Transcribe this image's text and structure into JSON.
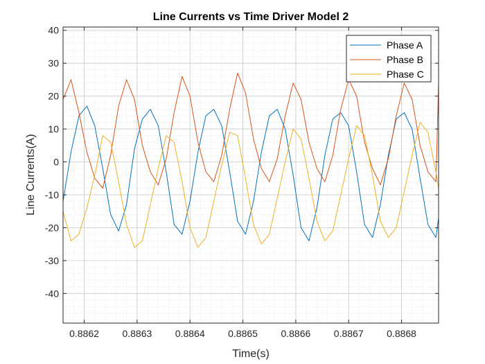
{
  "chart_data": {
    "type": "line",
    "title": "Line Currents vs Time Driver Model 2",
    "xlabel": "Time(s)",
    "ylabel": "Line Currents(A)",
    "xlim": [
      0.88616,
      0.88687
    ],
    "ylim": [
      -49,
      41
    ],
    "xticks": [
      0.8862,
      0.8863,
      0.8864,
      0.8865,
      0.8866,
      0.8867,
      0.8868
    ],
    "xtick_labels": [
      "0.8862",
      "0.8863",
      "0.8864",
      "0.8865",
      "0.8866",
      "0.8867",
      "0.8868"
    ],
    "yticks": [
      40,
      30,
      20,
      10,
      0,
      -10,
      -20,
      -30,
      -40
    ],
    "ytick_labels": [
      "40",
      "30",
      "20",
      "10",
      "0",
      "-10",
      "-20",
      "-30",
      "-40"
    ],
    "grid": true,
    "minor_grid": true,
    "legend_position": "top-right",
    "series": [
      {
        "name": "Phase A",
        "color": "#0072BD",
        "x": [
          0.88616,
          0.886175,
          0.88619,
          0.886205,
          0.88622,
          0.886235,
          0.88625,
          0.886265,
          0.88628,
          0.886295,
          0.88631,
          0.886325,
          0.88634,
          0.886355,
          0.88637,
          0.886385,
          0.8864,
          0.886415,
          0.88643,
          0.886445,
          0.88646,
          0.886475,
          0.88649,
          0.886505,
          0.88652,
          0.886535,
          0.88655,
          0.886565,
          0.88658,
          0.886595,
          0.88661,
          0.886625,
          0.88664,
          0.886655,
          0.88667,
          0.886685,
          0.8867,
          0.886715,
          0.88673,
          0.886745,
          0.88676,
          0.886775,
          0.88679,
          0.886805,
          0.88682,
          0.886835,
          0.88685,
          0.886865,
          0.88687
        ],
        "y": [
          -12,
          3,
          14,
          17,
          11,
          -2,
          -16,
          -21,
          -13,
          4,
          13,
          16,
          11,
          -3,
          -19,
          -22,
          -12,
          3,
          14,
          16,
          11,
          -3,
          -18,
          -22,
          -12,
          3,
          14,
          16,
          10,
          -4,
          -20,
          -24,
          -14,
          2,
          13,
          15,
          11,
          -3,
          -19,
          -23,
          -13,
          2,
          13,
          15,
          10,
          -5,
          -19,
          -23,
          -17
        ]
      },
      {
        "name": "Phase B",
        "color": "#D95319",
        "x": [
          0.88616,
          0.886175,
          0.88619,
          0.886205,
          0.88622,
          0.886235,
          0.88625,
          0.886265,
          0.88628,
          0.886295,
          0.88631,
          0.886325,
          0.88634,
          0.886355,
          0.88637,
          0.886385,
          0.8864,
          0.886415,
          0.88643,
          0.886445,
          0.88646,
          0.886475,
          0.88649,
          0.886505,
          0.88652,
          0.886535,
          0.88655,
          0.886565,
          0.88658,
          0.886595,
          0.88661,
          0.886625,
          0.88664,
          0.886655,
          0.88667,
          0.886685,
          0.8867,
          0.886715,
          0.88673,
          0.886745,
          0.88676,
          0.886775,
          0.88679,
          0.886805,
          0.88682,
          0.886835,
          0.88685,
          0.886865,
          0.88687
        ],
        "y": [
          19,
          25,
          15,
          3,
          -5,
          -8,
          2,
          17,
          25,
          19,
          5,
          -3,
          -7,
          1,
          15,
          26,
          20,
          6,
          -3,
          -6,
          2,
          16,
          27,
          21,
          7,
          -2,
          -6,
          1,
          14,
          24,
          19,
          6,
          -2,
          -6,
          2,
          16,
          25,
          20,
          6,
          -2,
          -7,
          1,
          14,
          24,
          19,
          5,
          -3,
          -6,
          24
        ]
      },
      {
        "name": "Phase C",
        "color": "#EDB120",
        "x": [
          0.88616,
          0.886175,
          0.88619,
          0.886205,
          0.88622,
          0.886235,
          0.88625,
          0.886265,
          0.88628,
          0.886295,
          0.88631,
          0.886325,
          0.88634,
          0.886355,
          0.88637,
          0.886385,
          0.8864,
          0.886415,
          0.88643,
          0.886445,
          0.88646,
          0.886475,
          0.88649,
          0.886505,
          0.88652,
          0.886535,
          0.88655,
          0.886565,
          0.88658,
          0.886595,
          0.88661,
          0.886625,
          0.88664,
          0.886655,
          0.88667,
          0.886685,
          0.8867,
          0.886715,
          0.88673,
          0.886745,
          0.88676,
          0.886775,
          0.88679,
          0.886805,
          0.88682,
          0.886835,
          0.88685,
          0.886865,
          0.88687
        ],
        "y": [
          -15,
          -24,
          -22,
          -14,
          -4,
          8,
          6,
          -6,
          -19,
          -26,
          -24,
          -13,
          -2,
          8,
          6,
          -6,
          -20,
          -26,
          -23,
          -12,
          -1,
          9,
          8,
          -5,
          -19,
          -25,
          -22,
          -11,
          0,
          10,
          7,
          -5,
          -18,
          -24,
          -21,
          -10,
          1,
          11,
          8,
          -4,
          -18,
          -23,
          -20,
          -9,
          2,
          12,
          9,
          -3,
          -8
        ]
      }
    ]
  }
}
